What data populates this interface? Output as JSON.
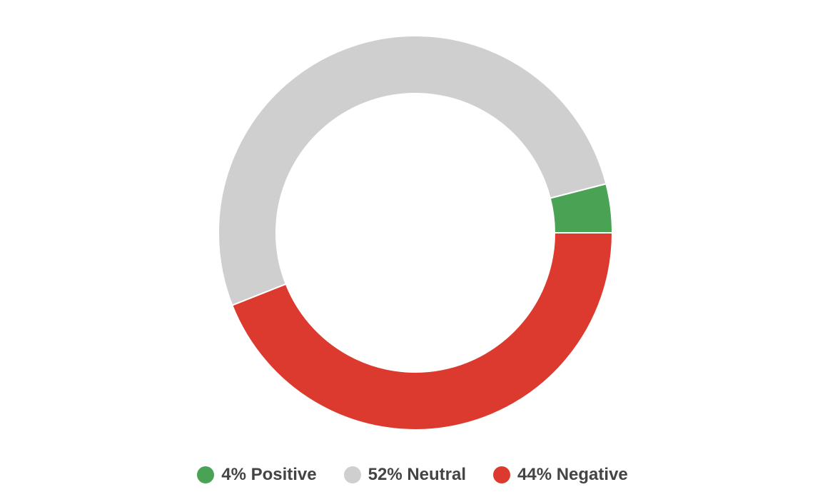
{
  "chart_data": {
    "type": "pie",
    "variant": "donut",
    "title": "",
    "categories": [
      "Positive",
      "Neutral",
      "Negative"
    ],
    "values": [
      4,
      52,
      44
    ],
    "unit": "%",
    "colors": [
      "#4aa354",
      "#cfcfcf",
      "#dc3a2e"
    ],
    "legend_position": "bottom",
    "legend": [
      {
        "label": "4% Positive",
        "color": "#4aa354"
      },
      {
        "label": "52% Neutral",
        "color": "#cfcfcf"
      },
      {
        "label": "44% Negative",
        "color": "#dc3a2e"
      }
    ]
  }
}
